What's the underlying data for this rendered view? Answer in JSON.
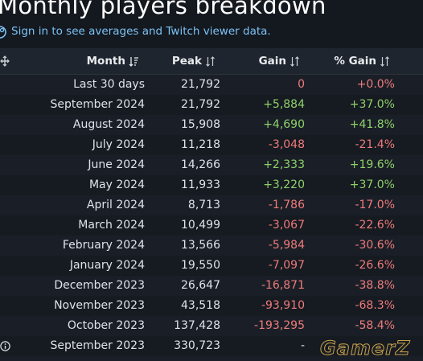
{
  "title": "Monthly players breakdown",
  "signin_text": "Sign in to see averages and Twitch viewer data.",
  "columns": {
    "month": "Month",
    "peak": "Peak",
    "gain": "Gain",
    "pgain": "% Gain"
  },
  "rows": [
    {
      "month": "Last 30 days",
      "peak": "21,792",
      "gain": "0",
      "pgain": "+0.0%",
      "gain_sign": "zero",
      "pgain_sign": "neg"
    },
    {
      "month": "September 2024",
      "peak": "21,792",
      "gain": "+5,884",
      "pgain": "+37.0%",
      "gain_sign": "pos",
      "pgain_sign": "pos"
    },
    {
      "month": "August 2024",
      "peak": "15,908",
      "gain": "+4,690",
      "pgain": "+41.8%",
      "gain_sign": "pos",
      "pgain_sign": "pos"
    },
    {
      "month": "July 2024",
      "peak": "11,218",
      "gain": "-3,048",
      "pgain": "-21.4%",
      "gain_sign": "neg",
      "pgain_sign": "neg"
    },
    {
      "month": "June 2024",
      "peak": "14,266",
      "gain": "+2,333",
      "pgain": "+19.6%",
      "gain_sign": "pos",
      "pgain_sign": "pos"
    },
    {
      "month": "May 2024",
      "peak": "11,933",
      "gain": "+3,220",
      "pgain": "+37.0%",
      "gain_sign": "pos",
      "pgain_sign": "pos"
    },
    {
      "month": "April 2024",
      "peak": "8,713",
      "gain": "-1,786",
      "pgain": "-17.0%",
      "gain_sign": "neg",
      "pgain_sign": "neg"
    },
    {
      "month": "March 2024",
      "peak": "10,499",
      "gain": "-3,067",
      "pgain": "-22.6%",
      "gain_sign": "neg",
      "pgain_sign": "neg"
    },
    {
      "month": "February 2024",
      "peak": "13,566",
      "gain": "-5,984",
      "pgain": "-30.6%",
      "gain_sign": "neg",
      "pgain_sign": "neg"
    },
    {
      "month": "January 2024",
      "peak": "19,550",
      "gain": "-7,097",
      "pgain": "-26.6%",
      "gain_sign": "neg",
      "pgain_sign": "neg"
    },
    {
      "month": "December 2023",
      "peak": "26,647",
      "gain": "-16,871",
      "pgain": "-38.8%",
      "gain_sign": "neg",
      "pgain_sign": "neg"
    },
    {
      "month": "November 2023",
      "peak": "43,518",
      "gain": "-93,910",
      "pgain": "-68.3%",
      "gain_sign": "neg",
      "pgain_sign": "neg"
    },
    {
      "month": "October 2023",
      "peak": "137,428",
      "gain": "-193,295",
      "pgain": "-58.4%",
      "gain_sign": "neg",
      "pgain_sign": "neg"
    },
    {
      "month": "September 2023",
      "peak": "330,723",
      "gain": "-",
      "pgain": "",
      "gain_sign": "neutral",
      "pgain_sign": "neutral",
      "icon": "info-icon"
    }
  ],
  "watermark": "GamerZ",
  "colors": {
    "background": "#14181f",
    "link": "#7cc3f5",
    "positive": "#8ed16a",
    "negative": "#ef7b7b"
  },
  "icons": {
    "signin": "steam-icon",
    "drag": "drag-handle-icon",
    "sort_desc": "sort-descending-icon",
    "sort": "sort-icon",
    "info": "info-icon"
  }
}
